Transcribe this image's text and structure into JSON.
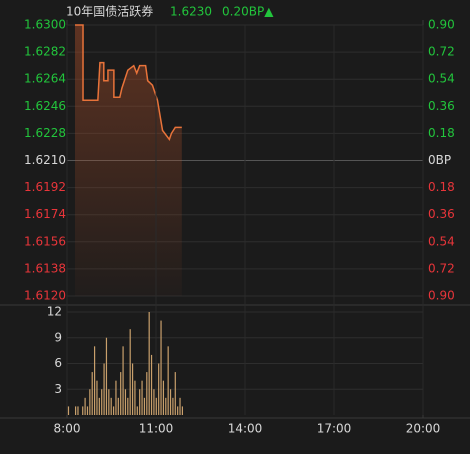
{
  "header": {
    "title": "10年国债活跃券",
    "price": "1.6230",
    "change": "0.20BP▲"
  },
  "chart_data": [
    {
      "type": "line",
      "x": [
        8.27,
        8.54,
        8.54,
        9.04,
        9.11,
        9.24,
        9.24,
        9.38,
        9.38,
        9.58,
        9.58,
        9.78,
        9.85,
        10.05,
        10.25,
        10.35,
        10.45,
        10.65,
        10.72,
        10.88,
        11.05,
        11.22,
        11.45,
        11.52,
        11.65,
        11.87
      ],
      "series": [
        {
          "name": "10年国债活跃券",
          "color": "#e8733a",
          "values": [
            1.63,
            1.63,
            1.625,
            1.625,
            1.6275,
            1.6275,
            1.6263,
            1.6263,
            1.627,
            1.627,
            1.6252,
            1.6252,
            1.6258,
            1.627,
            1.6273,
            1.6268,
            1.6273,
            1.6273,
            1.6263,
            1.626,
            1.625,
            1.623,
            1.6224,
            1.6228,
            1.6232,
            1.6232
          ]
        }
      ],
      "xlim": [
        8,
        20
      ],
      "ylim": [
        1.612,
        1.63
      ],
      "yticks": [
        {
          "value": 1.63,
          "label": "1.6300"
        },
        1.6282,
        1.6264,
        1.6246,
        1.6228,
        {
          "value": 1.621,
          "label": "1.6210"
        },
        1.6192,
        1.6174,
        1.6156,
        1.6138,
        {
          "value": 1.612,
          "label": "1.6120"
        }
      ],
      "y2lim": [
        -0.9,
        0.9
      ],
      "y2ticks": [
        {
          "value": 0.9,
          "label": "0.90"
        },
        0.72,
        0.54,
        0.36,
        0.18,
        {
          "value": 0,
          "label": "0BP"
        },
        {
          "value": -0.18,
          "label": "0.18"
        },
        {
          "value": -0.36,
          "label": "0.36"
        },
        {
          "value": -0.54,
          "label": "0.54"
        },
        {
          "value": -0.72,
          "label": "0.72"
        },
        {
          "value": -0.9,
          "label": "0.90"
        }
      ],
      "up_color": "#22c53c",
      "down_color": "#e8353a",
      "flat_color": "#d8d8d8",
      "grid": true
    },
    {
      "type": "bar",
      "x": [
        8.05,
        8.13,
        8.21,
        8.29,
        8.37,
        8.45,
        8.53,
        8.61,
        8.69,
        8.77,
        8.85,
        8.93,
        9.01,
        9.09,
        9.17,
        9.25,
        9.33,
        9.41,
        9.49,
        9.57,
        9.65,
        9.73,
        9.81,
        9.89,
        9.97,
        10.05,
        10.13,
        10.21,
        10.29,
        10.37,
        10.45,
        10.53,
        10.61,
        10.69,
        10.77,
        10.85,
        10.93,
        11.01,
        11.09,
        11.17,
        11.25,
        11.33,
        11.41,
        11.49,
        11.57,
        11.65,
        11.73,
        11.81,
        11.89
      ],
      "values": [
        1,
        0,
        0,
        1,
        1,
        0,
        1,
        2,
        1,
        3,
        5,
        8,
        4,
        2,
        3,
        6,
        9,
        3,
        2,
        1,
        4,
        2,
        5,
        8,
        3,
        2,
        10,
        6,
        4,
        1,
        3,
        4,
        2,
        5,
        12,
        7,
        3,
        2,
        6,
        11,
        4,
        2,
        8,
        3,
        2,
        5,
        1,
        2,
        1
      ],
      "color": "#c9a06c",
      "xlim": [
        8,
        20
      ],
      "ylim": [
        0,
        12
      ],
      "yticks": [
        3,
        6,
        9,
        12
      ],
      "xticks": [
        {
          "value": 8,
          "label": "8:00"
        },
        {
          "value": 11,
          "label": "11:00"
        },
        {
          "value": 14,
          "label": "14:00"
        },
        {
          "value": 17,
          "label": "17:00"
        },
        {
          "value": 20,
          "label": "20:00"
        }
      ],
      "grid": true
    }
  ]
}
